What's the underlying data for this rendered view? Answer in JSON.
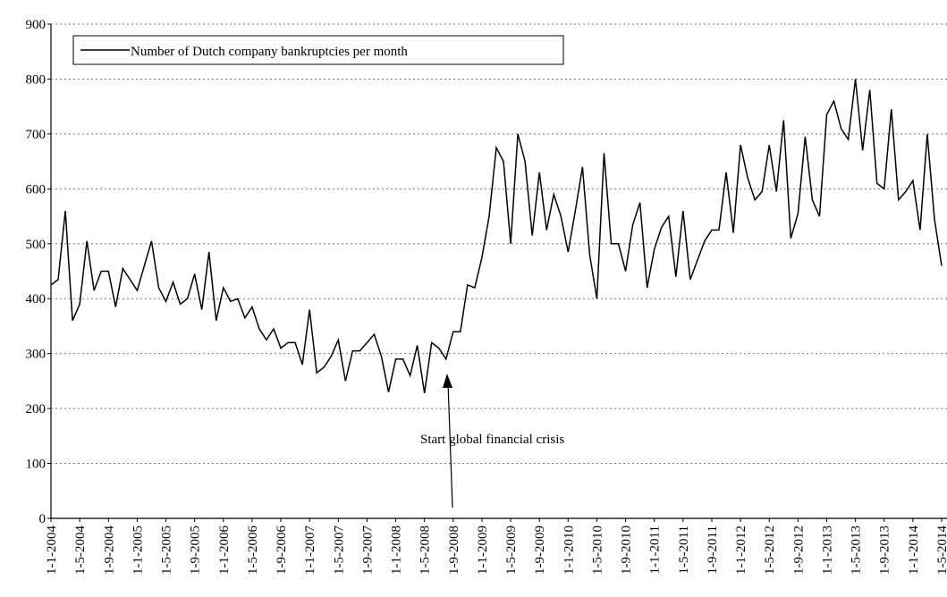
{
  "chart_data": {
    "type": "line",
    "series": [
      {
        "name": "Number of Dutch company bankruptcies per month",
        "color": "#000000",
        "values": [
          425,
          435,
          560,
          360,
          390,
          505,
          415,
          450,
          450,
          385,
          455,
          435,
          415,
          460,
          505,
          420,
          395,
          430,
          390,
          400,
          445,
          380,
          485,
          360,
          420,
          395,
          400,
          365,
          385,
          345,
          325,
          345,
          310,
          320,
          320,
          280,
          380,
          265,
          275,
          295,
          325,
          250,
          305,
          305,
          320,
          335,
          295,
          230,
          290,
          290,
          260,
          315,
          228,
          320,
          310,
          290,
          340,
          340,
          425,
          420,
          475,
          550,
          675,
          650,
          500,
          700,
          650,
          515,
          630,
          525,
          590,
          550,
          485,
          560,
          640,
          480,
          400,
          665,
          500,
          500,
          450,
          535,
          575,
          420,
          490,
          530,
          550,
          440,
          560,
          435,
          470,
          505,
          525,
          525,
          630,
          520,
          680,
          620,
          580,
          595,
          680,
          595,
          725,
          510,
          555,
          695,
          580,
          550,
          735,
          760,
          710,
          690,
          800,
          670,
          780,
          610,
          600,
          745,
          580,
          595,
          615,
          525,
          700,
          545,
          460
        ]
      }
    ],
    "categories": [
      "1-1-2004",
      null,
      null,
      null,
      "1-5-2004",
      null,
      null,
      null,
      "1-9-2004",
      null,
      null,
      null,
      "1-1-2005",
      null,
      null,
      null,
      "1-5-2005",
      null,
      null,
      null,
      "1-9-2005",
      null,
      null,
      null,
      "1-1-2006",
      null,
      null,
      null,
      "1-5-2006",
      null,
      null,
      null,
      "1-9-2006",
      null,
      null,
      null,
      "1-1-2007",
      null,
      null,
      null,
      "1-5-2007",
      null,
      null,
      null,
      "1-9-2007",
      null,
      null,
      null,
      "1-1-2008",
      null,
      null,
      null,
      "1-5-2008",
      null,
      null,
      null,
      "1-9-2008",
      null,
      null,
      null,
      "1-1-2009",
      null,
      null,
      null,
      "1-5-2009",
      null,
      null,
      null,
      "1-9-2009",
      null,
      null,
      null,
      "1-1-2010",
      null,
      null,
      null,
      "1-5-2010",
      null,
      null,
      null,
      "1-9-2010",
      null,
      null,
      null,
      "1-1-2011",
      null,
      null,
      null,
      "1-5-2011",
      null,
      null,
      null,
      "1-9-2011",
      null,
      null,
      null,
      "1-1-2012",
      null,
      null,
      null,
      "1-5-2012",
      null,
      null,
      null,
      "1-9-2012",
      null,
      null,
      null,
      "1-1-2013",
      null,
      null,
      null,
      "1-5-2013",
      null,
      null,
      null,
      "1-9-2013",
      null,
      null,
      null,
      "1-1-2014",
      null,
      null,
      null,
      "1-5-2014"
    ],
    "ylim": [
      0,
      900
    ],
    "yticks": [
      0,
      100,
      200,
      300,
      400,
      500,
      600,
      700,
      800,
      900
    ],
    "grid": true,
    "legend": "upper left",
    "annotation": "Start global financial crisis"
  }
}
